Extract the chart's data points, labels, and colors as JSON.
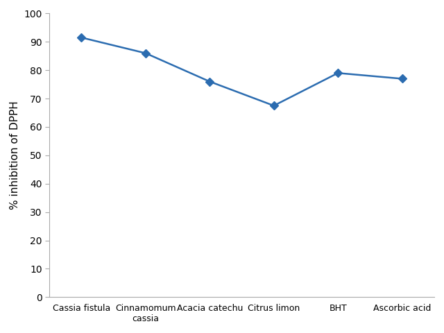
{
  "categories": [
    "Cassia fistula",
    "Cinnamomum\ncassia",
    "Acacia catechu",
    "Citrus limon",
    "BHT",
    "Ascorbic acid"
  ],
  "values": [
    91.5,
    86.0,
    76.0,
    67.5,
    79.0,
    77.0
  ],
  "line_color": "#2B6CB0",
  "marker": "D",
  "marker_size": 6,
  "ylabel": "% inhibition of DPPH",
  "ylim": [
    0,
    100
  ],
  "yticks": [
    0,
    10,
    20,
    30,
    40,
    50,
    60,
    70,
    80,
    90,
    100
  ],
  "background_color": "#ffffff",
  "border_color": "#cccccc",
  "ylabel_fontsize": 11,
  "tick_fontsize": 10,
  "xtick_fontsize": 9
}
